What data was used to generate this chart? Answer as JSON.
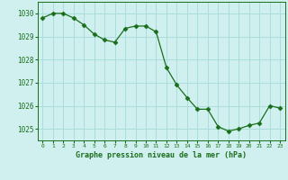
{
  "x": [
    0,
    1,
    2,
    3,
    4,
    5,
    6,
    7,
    8,
    9,
    10,
    11,
    12,
    13,
    14,
    15,
    16,
    17,
    18,
    19,
    20,
    21,
    22,
    23
  ],
  "y": [
    1029.8,
    1030.0,
    1030.0,
    1029.8,
    1029.5,
    1029.1,
    1028.85,
    1028.75,
    1029.35,
    1029.45,
    1029.45,
    1029.2,
    1027.65,
    1026.9,
    1026.35,
    1025.85,
    1025.85,
    1025.1,
    1024.9,
    1025.0,
    1025.15,
    1025.25,
    1026.0,
    1025.9
  ],
  "line_color": "#1a6e1a",
  "marker": "D",
  "marker_size": 2.5,
  "bg_color": "#d0f0f0",
  "grid_color": "#aadddd",
  "xlabel": "Graphe pression niveau de la mer (hPa)",
  "xlabel_color": "#1a6e1a",
  "tick_color": "#1a6e1a",
  "ylim": [
    1024.5,
    1030.5
  ],
  "yticks": [
    1025,
    1026,
    1027,
    1028,
    1029,
    1030
  ],
  "xlim": [
    -0.5,
    23.5
  ],
  "xticks": [
    0,
    1,
    2,
    3,
    4,
    5,
    6,
    7,
    8,
    9,
    10,
    11,
    12,
    13,
    14,
    15,
    16,
    17,
    18,
    19,
    20,
    21,
    22,
    23
  ]
}
